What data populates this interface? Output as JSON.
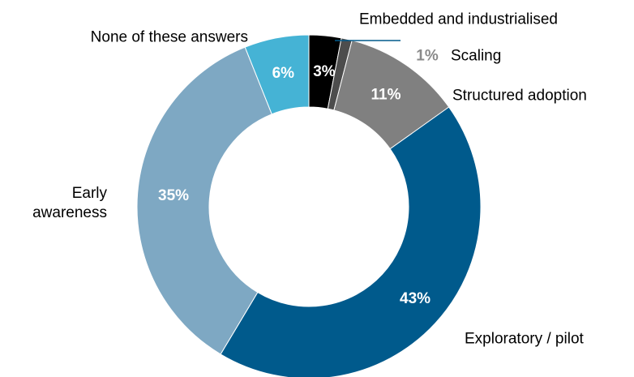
{
  "chart_data": {
    "type": "pie",
    "donut": true,
    "legend": "none",
    "slices": [
      {
        "label": "Embedded and industrialised",
        "value": 3,
        "display": "3%",
        "color": "#000000",
        "label_color": "#ffffff"
      },
      {
        "label": "Scaling",
        "value": 1,
        "display": "1%",
        "color": "#4d4d4d",
        "label_color": "#8a8a8a"
      },
      {
        "label": "Structured adoption",
        "value": 11,
        "display": "11%",
        "color": "#808080",
        "label_color": "#ffffff"
      },
      {
        "label": "Exploratory / pilot",
        "value": 43,
        "display": "43%",
        "color": "#005a8c",
        "label_color": "#ffffff"
      },
      {
        "label": "Early awareness",
        "value": 35,
        "display": "35%",
        "color": "#7ea8c3",
        "label_color": "#ffffff"
      },
      {
        "label": "None of these answers",
        "value": 6,
        "display": "6%",
        "color": "#45b3d5",
        "label_color": "#ffffff"
      }
    ]
  }
}
